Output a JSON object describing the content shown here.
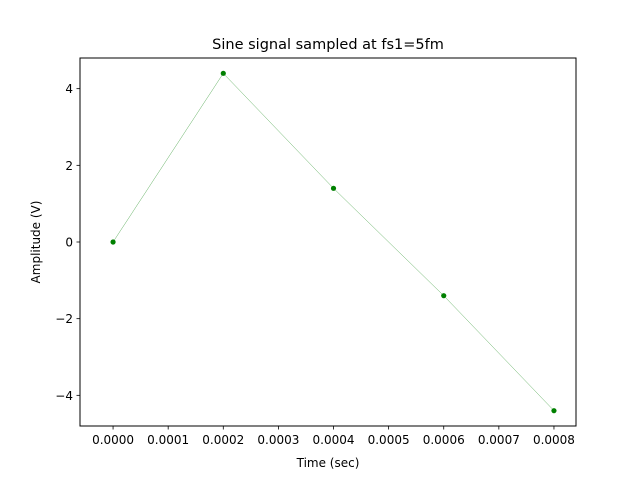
{
  "chart_data": {
    "type": "line",
    "title": "Sine signal sampled at fs1=5fm",
    "xlabel": "Time (sec)",
    "ylabel": "Amplitude (V)",
    "xlim": [
      -6e-05,
      0.00084
    ],
    "ylim": [
      -4.8,
      4.8
    ],
    "xticks": [
      0,
      0.0001,
      0.0002,
      0.0003,
      0.0004,
      0.0005,
      0.0006,
      0.0007,
      0.0008
    ],
    "xtick_labels": [
      "0.0000",
      "0.0001",
      "0.0002",
      "0.0003",
      "0.0004",
      "0.0005",
      "0.0006",
      "0.0007",
      "0.0008"
    ],
    "yticks": [
      -4,
      -2,
      0,
      2,
      4
    ],
    "ytick_labels": [
      "−4",
      "−2",
      "0",
      "2",
      "4"
    ],
    "grid": false,
    "series": [
      {
        "color": "#008000",
        "x": [
          0,
          0.0002,
          0.0004,
          0.0006,
          0.0008
        ],
        "y": [
          0,
          4.4,
          1.4,
          -1.4,
          -4.4
        ]
      }
    ]
  }
}
